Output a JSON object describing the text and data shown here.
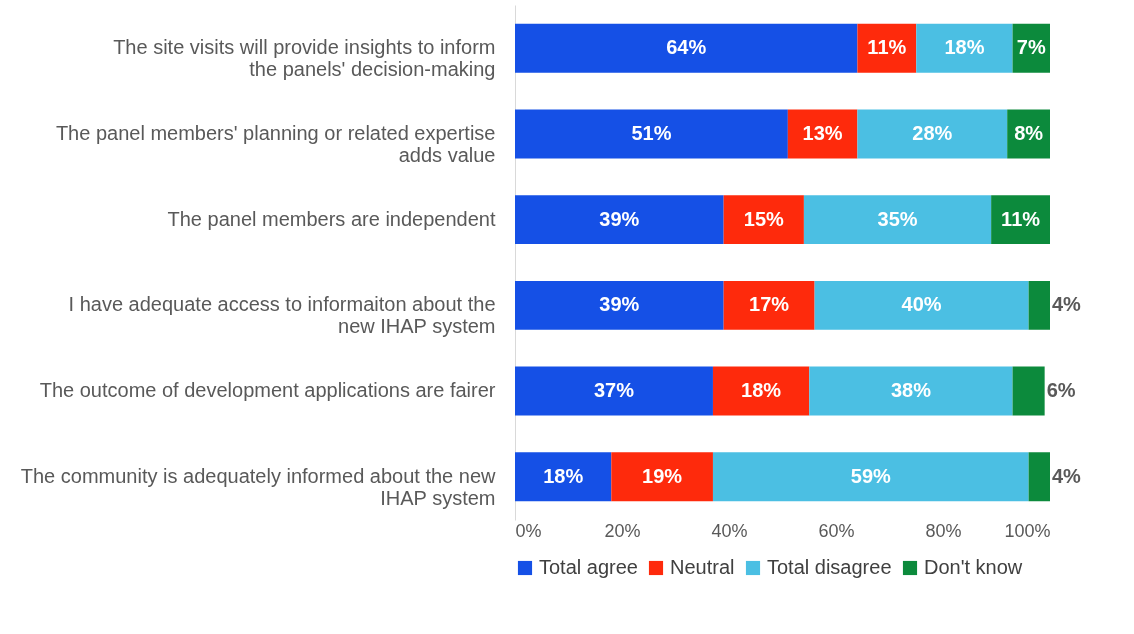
{
  "chart_data": {
    "type": "bar",
    "orientation": "horizontal",
    "stacked": true,
    "legend": "bottom",
    "grid": false,
    "categories": [
      "The site visits will provide insights to inform the panels' decision-making",
      "The panel members' planning or related expertise adds value",
      "The panel members are independent",
      "I have adequate access to informaiton about the new IHAP system",
      "The outcome of development applications are fairer",
      "The community is adequately informed about the new IHAP system"
    ],
    "xlim": [
      0,
      100
    ],
    "xticks": [
      {
        "value": 0,
        "label": "0%"
      },
      {
        "value": 20,
        "label": "20%"
      },
      {
        "value": 40,
        "label": "40%"
      },
      {
        "value": 60,
        "label": "60%"
      },
      {
        "value": 80,
        "label": "80%"
      },
      {
        "value": 100,
        "label": "100%"
      }
    ],
    "series": [
      {
        "name": "Total agree",
        "color": "#1550e6",
        "values": [
          64,
          51,
          39,
          39,
          37,
          18
        ],
        "value_labels": [
          "64%",
          "51%",
          "39%",
          "39%",
          "37%",
          "18%"
        ]
      },
      {
        "name": "Neutral",
        "color": "#fe2a0c",
        "values": [
          11,
          13,
          15,
          17,
          18,
          19
        ],
        "value_labels": [
          "11%",
          "13%",
          "15%",
          "17%",
          "18%",
          "19%"
        ]
      },
      {
        "name": "Total disagree",
        "color": "#4bbfe3",
        "values": [
          18,
          28,
          35,
          40,
          38,
          59
        ],
        "value_labels": [
          "18%",
          "28%",
          "35%",
          "40%",
          "38%",
          "59%"
        ]
      },
      {
        "name": "Don't know",
        "color": "#0c8a3c",
        "values": [
          7,
          8,
          11,
          4,
          6,
          4
        ],
        "value_labels": [
          "7%",
          "8%",
          "11%",
          "4%",
          "6%",
          "4%"
        ]
      }
    ]
  }
}
